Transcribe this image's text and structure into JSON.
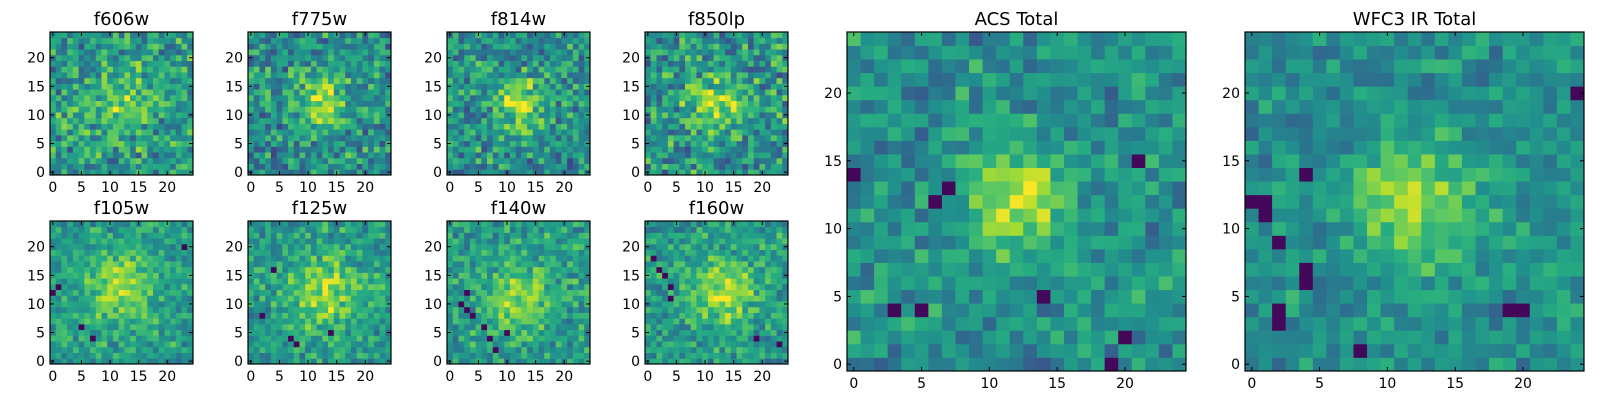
{
  "figure": {
    "description_free": true
  },
  "chart_data": [
    {
      "type": "heatmap",
      "title": "f606w",
      "x_ticks": [
        0,
        5,
        10,
        15,
        20
      ],
      "y_ticks": [
        0,
        5,
        10,
        15,
        20
      ],
      "xlim": [
        0,
        24
      ],
      "ylim": [
        0,
        24
      ],
      "grid_size": 25,
      "colormap": "viridis",
      "seed": 11,
      "blob": {
        "cx": 12,
        "cy": 12,
        "sigma": 4.0,
        "amp": 0.18
      },
      "noise": 0.42,
      "base": 0.55,
      "dark_pixels": []
    },
    {
      "type": "heatmap",
      "title": "f775w",
      "x_ticks": [
        0,
        5,
        10,
        15,
        20
      ],
      "y_ticks": [
        0,
        5,
        10,
        15,
        20
      ],
      "xlim": [
        0,
        24
      ],
      "ylim": [
        0,
        24
      ],
      "grid_size": 25,
      "colormap": "viridis",
      "seed": 23,
      "blob": {
        "cx": 12,
        "cy": 12,
        "sigma": 3.5,
        "amp": 0.32
      },
      "noise": 0.42,
      "base": 0.5,
      "dark_pixels": []
    },
    {
      "type": "heatmap",
      "title": "f814w",
      "x_ticks": [
        0,
        5,
        10,
        15,
        20
      ],
      "y_ticks": [
        0,
        5,
        10,
        15,
        20
      ],
      "xlim": [
        0,
        24
      ],
      "ylim": [
        0,
        24
      ],
      "grid_size": 25,
      "colormap": "viridis",
      "seed": 37,
      "blob": {
        "cx": 12,
        "cy": 12,
        "sigma": 3.2,
        "amp": 0.4
      },
      "noise": 0.42,
      "base": 0.5,
      "dark_pixels": []
    },
    {
      "type": "heatmap",
      "title": "f850lp",
      "x_ticks": [
        0,
        5,
        10,
        15,
        20
      ],
      "y_ticks": [
        0,
        5,
        10,
        15,
        20
      ],
      "xlim": [
        0,
        24
      ],
      "ylim": [
        0,
        24
      ],
      "grid_size": 25,
      "colormap": "viridis",
      "seed": 41,
      "blob": {
        "cx": 12,
        "cy": 12,
        "sigma": 3.5,
        "amp": 0.3
      },
      "noise": 0.44,
      "base": 0.52,
      "dark_pixels": []
    },
    {
      "type": "heatmap",
      "title": "f105w",
      "x_ticks": [
        0,
        5,
        10,
        15,
        20
      ],
      "y_ticks": [
        0,
        5,
        10,
        15,
        20
      ],
      "xlim": [
        0,
        24
      ],
      "ylim": [
        0,
        24
      ],
      "grid_size": 25,
      "colormap": "viridis",
      "seed": 53,
      "blob": {
        "cx": 12,
        "cy": 13,
        "sigma": 4.5,
        "amp": 0.3
      },
      "noise": 0.3,
      "base": 0.55,
      "dark_pixels": [
        [
          0,
          12
        ],
        [
          1,
          13
        ],
        [
          5,
          6
        ],
        [
          7,
          4
        ],
        [
          23,
          20
        ]
      ]
    },
    {
      "type": "heatmap",
      "title": "f125w",
      "x_ticks": [
        0,
        5,
        10,
        15,
        20
      ],
      "y_ticks": [
        0,
        5,
        10,
        15,
        20
      ],
      "xlim": [
        0,
        24
      ],
      "ylim": [
        0,
        24
      ],
      "grid_size": 25,
      "colormap": "viridis",
      "seed": 67,
      "blob": {
        "cx": 13,
        "cy": 12,
        "sigma": 4.5,
        "amp": 0.3
      },
      "noise": 0.3,
      "base": 0.55,
      "dark_pixels": [
        [
          7,
          4
        ],
        [
          8,
          3
        ],
        [
          14,
          5
        ],
        [
          4,
          16
        ],
        [
          2,
          8
        ]
      ]
    },
    {
      "type": "heatmap",
      "title": "f140w",
      "x_ticks": [
        0,
        5,
        10,
        15,
        20
      ],
      "y_ticks": [
        0,
        5,
        10,
        15,
        20
      ],
      "xlim": [
        0,
        24
      ],
      "ylim": [
        0,
        24
      ],
      "grid_size": 25,
      "colormap": "viridis",
      "seed": 79,
      "blob": {
        "cx": 12,
        "cy": 11,
        "sigma": 4.0,
        "amp": 0.3
      },
      "noise": 0.32,
      "base": 0.55,
      "dark_pixels": [
        [
          2,
          10
        ],
        [
          3,
          9
        ],
        [
          4,
          8
        ],
        [
          6,
          6
        ],
        [
          7,
          4
        ],
        [
          8,
          2
        ],
        [
          3,
          12
        ],
        [
          10,
          5
        ]
      ]
    },
    {
      "type": "heatmap",
      "title": "f160w",
      "x_ticks": [
        0,
        5,
        10,
        15,
        20
      ],
      "y_ticks": [
        0,
        5,
        10,
        15,
        20
      ],
      "xlim": [
        0,
        24
      ],
      "ylim": [
        0,
        24
      ],
      "grid_size": 25,
      "colormap": "viridis",
      "seed": 83,
      "blob": {
        "cx": 13,
        "cy": 12,
        "sigma": 4.0,
        "amp": 0.32
      },
      "noise": 0.32,
      "base": 0.55,
      "dark_pixels": [
        [
          2,
          16
        ],
        [
          3,
          15
        ],
        [
          4,
          13
        ],
        [
          4,
          11
        ],
        [
          19,
          4
        ],
        [
          23,
          3
        ],
        [
          1,
          18
        ]
      ]
    },
    {
      "type": "heatmap",
      "title": "ACS Total",
      "x_ticks": [
        0,
        5,
        10,
        15,
        20
      ],
      "y_ticks": [
        0,
        5,
        10,
        15,
        20
      ],
      "xlim": [
        0,
        24
      ],
      "ylim": [
        0,
        24
      ],
      "grid_size": 25,
      "colormap": "viridis",
      "seed": 97,
      "blob": {
        "cx": 12,
        "cy": 12,
        "sigma": 2.6,
        "amp": 0.42
      },
      "noise": 0.3,
      "base": 0.5,
      "dark_pixels": [
        [
          6,
          12
        ],
        [
          7,
          13
        ],
        [
          3,
          4
        ],
        [
          5,
          4
        ],
        [
          14,
          5
        ],
        [
          20,
          2
        ],
        [
          19,
          0
        ],
        [
          0,
          14
        ],
        [
          21,
          15
        ]
      ]
    },
    {
      "type": "heatmap",
      "title": "WFC3 IR Total",
      "x_ticks": [
        0,
        5,
        10,
        15,
        20
      ],
      "y_ticks": [
        0,
        5,
        10,
        15,
        20
      ],
      "xlim": [
        0,
        24
      ],
      "ylim": [
        0,
        24
      ],
      "grid_size": 25,
      "colormap": "viridis",
      "seed": 109,
      "blob": {
        "cx": 12,
        "cy": 12,
        "sigma": 3.2,
        "amp": 0.36
      },
      "noise": 0.25,
      "base": 0.5,
      "dark_pixels": [
        [
          0,
          12
        ],
        [
          1,
          12
        ],
        [
          1,
          11
        ],
        [
          2,
          9
        ],
        [
          4,
          14
        ],
        [
          4,
          6
        ],
        [
          4,
          7
        ],
        [
          2,
          4
        ],
        [
          2,
          3
        ],
        [
          8,
          1
        ],
        [
          19,
          4
        ],
        [
          20,
          4
        ],
        [
          24,
          20
        ]
      ]
    }
  ]
}
